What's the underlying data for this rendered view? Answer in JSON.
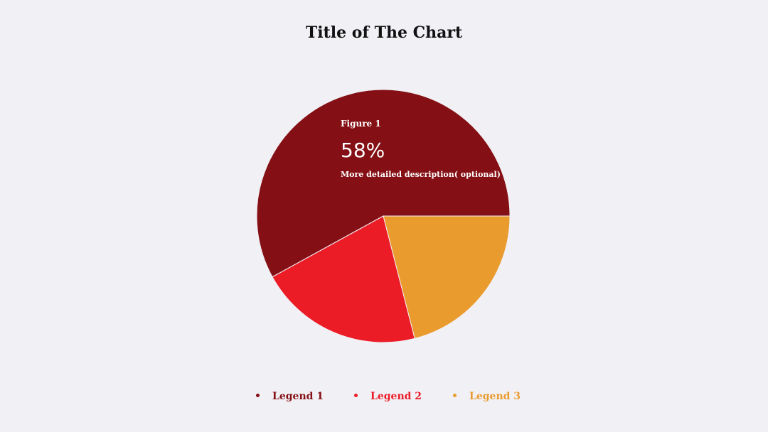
{
  "chart_data": {
    "type": "pie",
    "title": "Title of The Chart",
    "categories": [
      "Legend 1",
      "Legend 2",
      "Legend 3"
    ],
    "values": [
      58,
      21,
      21
    ],
    "colors": [
      "#841015",
      "#ec1c27",
      "#ea9b2e"
    ],
    "legend_position": "bottom",
    "annotation": {
      "label": "Figure 1",
      "value": "58%",
      "description": "More detailed description( optional)"
    }
  }
}
